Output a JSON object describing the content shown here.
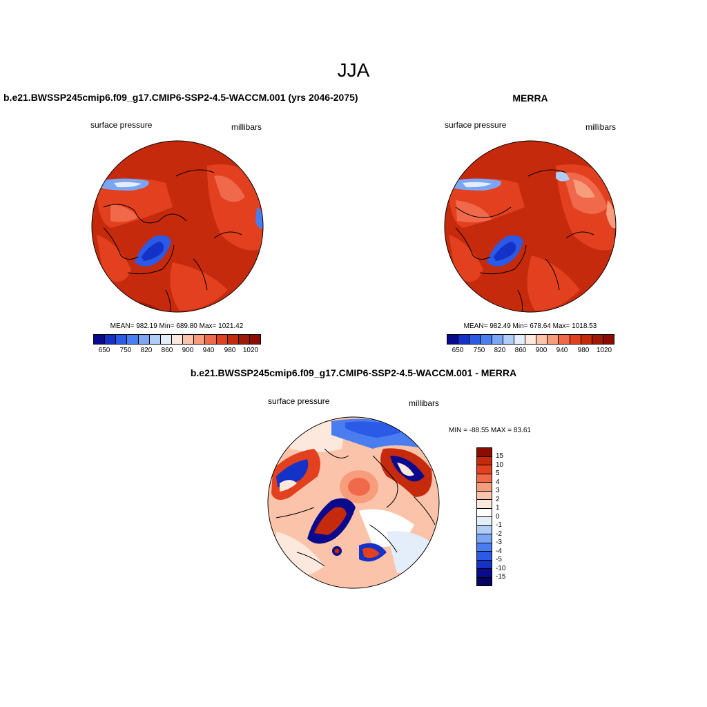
{
  "figure": {
    "title": "JJA"
  },
  "panels": [
    {
      "title": "b.e21.BWSSP245cmip6.f09_g17.CMIP6-SSP2-4.5-WACCM.001 (yrs 2046-2075)",
      "variable": "surface pressure",
      "units": "millibars",
      "stats": "MEAN= 982.19  Min= 689.80  Max= 1021.42",
      "mean": 982.19,
      "min": 689.8,
      "max": 1021.42,
      "colorbar_labels": [
        "650",
        "750",
        "820",
        "860",
        "900",
        "940",
        "980",
        "1020"
      ]
    },
    {
      "title": "MERRA",
      "variable": "surface pressure",
      "units": "millibars",
      "stats": "MEAN= 982.49  Min= 678.64  Max= 1018.53",
      "mean": 982.49,
      "min": 678.64,
      "max": 1018.53,
      "colorbar_labels": [
        "650",
        "750",
        "820",
        "860",
        "900",
        "940",
        "980",
        "1020"
      ]
    },
    {
      "title": "b.e21.BWSSP245cmip6.f09_g17.CMIP6-SSP2-4.5-WACCM.001 - MERRA",
      "variable": "surface pressure",
      "units": "millibars",
      "stats": "MIN = -88.55 MAX =  83.61",
      "min": -88.55,
      "max": 83.61,
      "colorbar_labels": [
        "15",
        "10",
        "5",
        "4",
        "3",
        "2",
        "1",
        "0",
        "-1",
        "-2",
        "-3",
        "-4",
        "-5",
        "-10",
        "-15"
      ]
    }
  ],
  "colors": {
    "abs_scale": [
      "#0a0a8c",
      "#1432c8",
      "#2a5ae6",
      "#4a7ef0",
      "#7aa6f5",
      "#b0cdf8",
      "#e4eefb",
      "#fde8de",
      "#fbc4aa",
      "#f79d7c",
      "#f0694a",
      "#e2401e",
      "#c62a0c",
      "#a01806",
      "#8a0c02"
    ],
    "diff_scale": [
      "#8a0c02",
      "#c62a0c",
      "#e2401e",
      "#f0694a",
      "#f79d7c",
      "#fbc4aa",
      "#fde8de",
      "#ffffff",
      "#e4eefb",
      "#b0cdf8",
      "#7aa6f5",
      "#4a7ef0",
      "#2a5ae6",
      "#1432c8",
      "#0a0a8c",
      "#05055f"
    ]
  }
}
